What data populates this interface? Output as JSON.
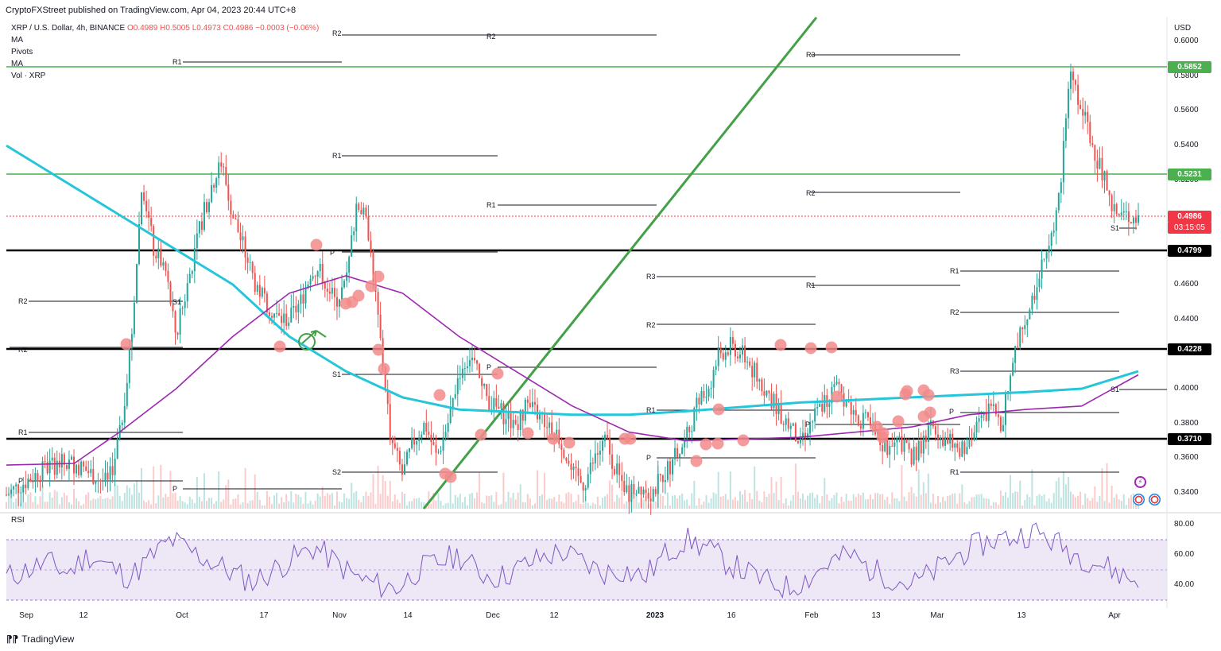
{
  "header": {
    "published": "CryptoFXStreet published on TradingView.com, Apr 04, 2023 20:44 UTC+8"
  },
  "legend": {
    "symbol": "XRP / U.S. Dollar, 4h, BINANCE",
    "ohlc": "O0.4989 H0.5005 L0.4973 C0.4986 −0.0003 (−0.06%)",
    "ind1": "MA",
    "ind2": "Pivots",
    "ind3": "MA",
    "ind4": "Vol · XRP",
    "rsi": "RSI"
  },
  "axis": {
    "currency": "USD",
    "price_ticks": [
      "0.6000",
      "0.5800",
      "0.5600",
      "0.5400",
      "0.5200",
      "0.4800",
      "0.4600",
      "0.4400",
      "0.4200",
      "0.4000",
      "0.3800",
      "0.3600",
      "0.3400"
    ],
    "rsi_ticks": [
      "80.00",
      "60.00",
      "40.00"
    ],
    "x_ticks": [
      "Sep",
      "12",
      "Oct",
      "17",
      "Nov",
      "14",
      "Dec",
      "12",
      "2023",
      "16",
      "Feb",
      "13",
      "Mar",
      "13",
      "Apr"
    ]
  },
  "badges": {
    "r1": "0.5852",
    "r2": "0.5231",
    "last": "0.4986",
    "countdown": "03:15:05",
    "s1": "0.4799",
    "s2": "0.4228",
    "s3": "0.3710"
  },
  "colors": {
    "green_line": "#4caf50",
    "support_line": "#000000",
    "ma_cyan": "#26c6da",
    "ma_purple": "#9c27b0",
    "rsi_line": "#7e57c2",
    "bull": "#26a69a",
    "bear": "#ef5350",
    "last_price": "#f23645",
    "highlight_dot": "#f28b8b"
  },
  "pivot_labels": [
    "R2",
    "R2",
    "R1",
    "R3",
    "R1",
    "R2",
    "R1",
    "R2",
    "P",
    "R3",
    "R1",
    "R1",
    "R2",
    "S1",
    "R3",
    "R1",
    "P",
    "R2",
    "S2",
    "P",
    "R1",
    "R2",
    "P",
    "S1",
    "R1",
    "P",
    "P",
    "S1",
    "P",
    "S1"
  ],
  "footer": {
    "brand": "TradingView"
  },
  "chart_data": [
    {
      "type": "candlestick",
      "title": "XRP / U.S. Dollar, 4h, BINANCE",
      "ylabel": "USD",
      "ylim": [
        0.33,
        0.605
      ],
      "x": [
        "Sep",
        "12",
        "Oct",
        "17",
        "Nov",
        "14",
        "Dec",
        "12",
        "2023",
        "16",
        "Feb",
        "13",
        "Mar",
        "13",
        "Apr"
      ],
      "series": [
        {
          "name": "XRP / U.S. Dollar",
          "close_path": [
            [
              0,
              0.339
            ],
            [
              0.02,
              0.348
            ],
            [
              0.04,
              0.356
            ],
            [
              0.06,
              0.357
            ],
            [
              0.08,
              0.349
            ],
            [
              0.09,
              0.345
            ],
            [
              0.1,
              0.372
            ],
            [
              0.11,
              0.425
            ],
            [
              0.12,
              0.52
            ],
            [
              0.13,
              0.48
            ],
            [
              0.14,
              0.47
            ],
            [
              0.15,
              0.43
            ],
            [
              0.16,
              0.46
            ],
            [
              0.17,
              0.49
            ],
            [
              0.18,
              0.515
            ],
            [
              0.19,
              0.53
            ],
            [
              0.2,
              0.5
            ],
            [
              0.21,
              0.48
            ],
            [
              0.22,
              0.46
            ],
            [
              0.23,
              0.45
            ],
            [
              0.24,
              0.44
            ],
            [
              0.25,
              0.44
            ],
            [
              0.26,
              0.45
            ],
            [
              0.27,
              0.47
            ],
            [
              0.28,
              0.465
            ],
            [
              0.29,
              0.45
            ],
            [
              0.3,
              0.46
            ],
            [
              0.31,
              0.51
            ],
            [
              0.32,
              0.49
            ],
            [
              0.33,
              0.43
            ],
            [
              0.34,
              0.37
            ],
            [
              0.35,
              0.35
            ],
            [
              0.36,
              0.37
            ],
            [
              0.37,
              0.38
            ],
            [
              0.38,
              0.36
            ],
            [
              0.39,
              0.38
            ],
            [
              0.4,
              0.41
            ],
            [
              0.41,
              0.42
            ],
            [
              0.42,
              0.4
            ],
            [
              0.43,
              0.39
            ],
            [
              0.44,
              0.385
            ],
            [
              0.45,
              0.38
            ],
            [
              0.46,
              0.39
            ],
            [
              0.47,
              0.385
            ],
            [
              0.48,
              0.38
            ],
            [
              0.49,
              0.37
            ],
            [
              0.5,
              0.35
            ],
            [
              0.51,
              0.345
            ],
            [
              0.52,
              0.36
            ],
            [
              0.53,
              0.37
            ],
            [
              0.54,
              0.35
            ],
            [
              0.55,
              0.34
            ],
            [
              0.56,
              0.345
            ],
            [
              0.57,
              0.34
            ],
            [
              0.58,
              0.35
            ],
            [
              0.59,
              0.36
            ],
            [
              0.6,
              0.37
            ],
            [
              0.61,
              0.39
            ],
            [
              0.62,
              0.4
            ],
            [
              0.63,
              0.42
            ],
            [
              0.64,
              0.425
            ],
            [
              0.65,
              0.42
            ],
            [
              0.66,
              0.41
            ],
            [
              0.67,
              0.4
            ],
            [
              0.68,
              0.39
            ],
            [
              0.69,
              0.38
            ],
            [
              0.7,
              0.37
            ],
            [
              0.71,
              0.38
            ],
            [
              0.72,
              0.39
            ],
            [
              0.73,
              0.4
            ],
            [
              0.74,
              0.395
            ],
            [
              0.75,
              0.385
            ],
            [
              0.76,
              0.38
            ],
            [
              0.77,
              0.37
            ],
            [
              0.78,
              0.365
            ],
            [
              0.79,
              0.37
            ],
            [
              0.8,
              0.36
            ],
            [
              0.81,
              0.37
            ],
            [
              0.82,
              0.38
            ],
            [
              0.83,
              0.37
            ],
            [
              0.84,
              0.365
            ],
            [
              0.85,
              0.37
            ],
            [
              0.86,
              0.38
            ],
            [
              0.87,
              0.39
            ],
            [
              0.88,
              0.38
            ],
            [
              0.89,
              0.42
            ],
            [
              0.9,
              0.44
            ],
            [
              0.91,
              0.46
            ],
            [
              0.92,
              0.48
            ],
            [
              0.93,
              0.51
            ],
            [
              0.94,
              0.585
            ],
            [
              0.95,
              0.56
            ],
            [
              0.96,
              0.54
            ],
            [
              0.97,
              0.52
            ],
            [
              0.98,
              0.5
            ],
            [
              1.0,
              0.4986
            ]
          ]
        },
        {
          "name": "MA",
          "path": [
            [
              0,
              0.54
            ],
            [
              0.1,
              0.5
            ],
            [
              0.2,
              0.46
            ],
            [
              0.25,
              0.43
            ],
            [
              0.3,
              0.41
            ],
            [
              0.35,
              0.395
            ],
            [
              0.4,
              0.388
            ],
            [
              0.5,
              0.385
            ],
            [
              0.55,
              0.385
            ],
            [
              0.6,
              0.387
            ],
            [
              0.7,
              0.392
            ],
            [
              0.8,
              0.395
            ],
            [
              0.9,
              0.398
            ],
            [
              0.95,
              0.4
            ],
            [
              1.0,
              0.41
            ]
          ]
        },
        {
          "name": "MA",
          "path": [
            [
              0,
              0.356
            ],
            [
              0.06,
              0.357
            ],
            [
              0.1,
              0.375
            ],
            [
              0.15,
              0.4
            ],
            [
              0.2,
              0.43
            ],
            [
              0.25,
              0.455
            ],
            [
              0.3,
              0.465
            ],
            [
              0.35,
              0.455
            ],
            [
              0.4,
              0.43
            ],
            [
              0.45,
              0.41
            ],
            [
              0.5,
              0.39
            ],
            [
              0.55,
              0.375
            ],
            [
              0.6,
              0.37
            ],
            [
              0.7,
              0.372
            ],
            [
              0.8,
              0.378
            ],
            [
              0.85,
              0.385
            ],
            [
              0.9,
              0.388
            ],
            [
              0.95,
              0.39
            ],
            [
              1.0,
              0.408
            ]
          ]
        }
      ]
    },
    {
      "type": "line",
      "title": "RSI",
      "ylim": [
        25,
        90
      ],
      "series": [
        {
          "name": "RSI",
          "values": [
            45,
            50,
            55,
            48,
            60,
            52,
            45,
            58,
            70,
            62,
            55,
            48,
            42,
            50,
            58,
            65,
            55,
            45,
            40,
            38,
            50,
            55,
            60,
            48,
            45,
            52,
            58,
            62,
            55,
            48,
            50,
            45,
            60,
            70,
            65,
            55,
            48,
            42,
            38,
            45,
            55,
            60,
            50,
            45,
            40,
            48,
            58,
            65,
            70,
            72,
            75,
            68,
            60,
            55,
            48,
            42
          ]
        }
      ]
    }
  ]
}
